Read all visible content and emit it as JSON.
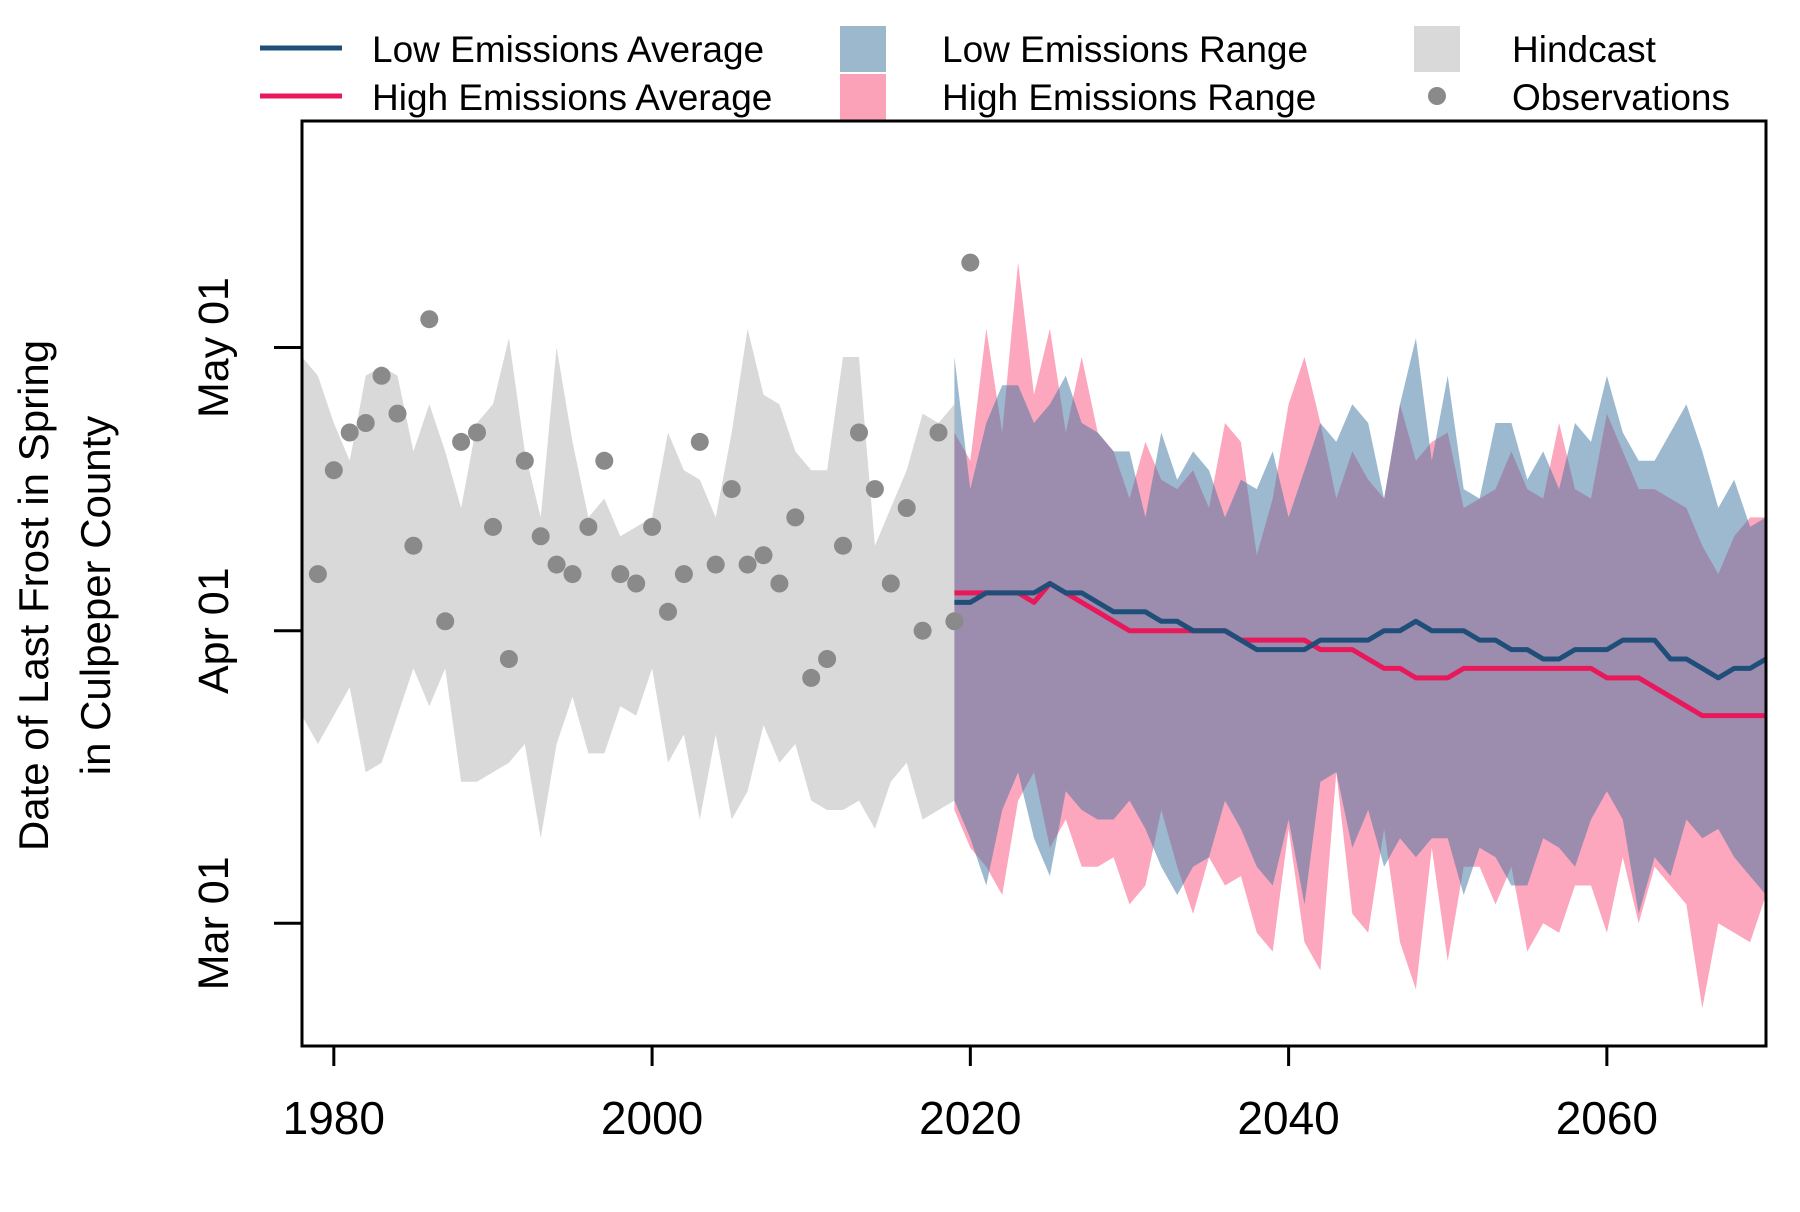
{
  "chart_data": {
    "type": "line",
    "title": "",
    "xlabel": "",
    "ylabel_lines": [
      "Date of Last Frost in Spring",
      "in Culpeper County"
    ],
    "x_ticks": [
      1980,
      2000,
      2020,
      2040,
      2060
    ],
    "y_ticks": [
      {
        "label": "Mar 01",
        "date": "Mar 01"
      },
      {
        "label": "Apr 01",
        "date": "Apr 01"
      },
      {
        "label": "May 01",
        "date": "May 01"
      }
    ],
    "xlim": [
      1978,
      2070
    ],
    "ylim": [
      "Feb 16",
      "May 25"
    ],
    "grid": false,
    "legend": {
      "placement": "top",
      "items": [
        {
          "label": "Low Emissions Average",
          "kind": "line",
          "color": "#1f4e79"
        },
        {
          "label": "High Emissions Average",
          "kind": "line",
          "color": "#e8195a"
        },
        {
          "label": "Low Emissions Range",
          "kind": "box",
          "color": "#9bb8cd"
        },
        {
          "label": "High Emissions Range",
          "kind": "box",
          "color": "#fba2b8"
        },
        {
          "label": "Hindcast",
          "kind": "box",
          "color": "#d9d9d9"
        },
        {
          "label": "Observations",
          "kind": "dot",
          "color": "#8a8a8a"
        }
      ]
    },
    "colors": {
      "hindcast": "#d9d9d9",
      "low_range": "rgba(60,115,160,0.5)",
      "high_range": "rgba(250,80,125,0.5)",
      "low_avg": "#1f4e79",
      "high_avg": "#e8195a",
      "observations": "#8a8a8a"
    },
    "hindcast": {
      "x": [
        1978,
        1979,
        1980,
        1981,
        1982,
        1983,
        1984,
        1985,
        1986,
        1987,
        1988,
        1989,
        1990,
        1991,
        1992,
        1993,
        1994,
        1995,
        1996,
        1997,
        1998,
        1999,
        2000,
        2001,
        2002,
        2003,
        2004,
        2005,
        2006,
        2007,
        2008,
        2009,
        2010,
        2011,
        2012,
        2013,
        2014,
        2015,
        2016,
        2017,
        2018,
        2019
      ],
      "upper": [
        "Apr 30",
        "Apr 28",
        "Apr 23",
        "Apr 19",
        "Apr 28",
        "Apr 29",
        "Apr 28",
        "Apr 20",
        "Apr 25",
        "Apr 20",
        "Apr 14",
        "Apr 23",
        "Apr 25",
        "May 02",
        "Apr 20",
        "Apr 13",
        "May 01",
        "Apr 21",
        "Apr 13",
        "Apr 15",
        "Apr 11",
        "Apr 12",
        "Apr 13",
        "Apr 22",
        "Apr 18",
        "Apr 17",
        "Apr 13",
        "Apr 22",
        "May 03",
        "Apr 26",
        "Apr 25",
        "Apr 20",
        "Apr 18",
        "Apr 18",
        "Apr 30",
        "Apr 30",
        "Apr 10",
        "Apr 14",
        "Apr 18",
        "Apr 24",
        "Apr 23",
        "Apr 25"
      ],
      "lower": [
        "Mar 23",
        "Mar 20",
        "Mar 23",
        "Mar 26",
        "Mar 17",
        "Mar 18",
        "Mar 23",
        "Mar 28",
        "Mar 24",
        "Mar 28",
        "Mar 16",
        "Mar 16",
        "Mar 17",
        "Mar 18",
        "Mar 20",
        "Mar 10",
        "Mar 20",
        "Mar 25",
        "Mar 19",
        "Mar 19",
        "Mar 24",
        "Mar 23",
        "Mar 28",
        "Mar 18",
        "Mar 21",
        "Mar 12",
        "Mar 21",
        "Mar 12",
        "Mar 15",
        "Mar 22",
        "Mar 18",
        "Mar 20",
        "Mar 14",
        "Mar 13",
        "Mar 13",
        "Mar 14",
        "Mar 11",
        "Mar 16",
        "Mar 18",
        "Mar 12",
        "Mar 13",
        "Mar 14"
      ]
    },
    "low_range": {
      "x": [
        2019,
        2020,
        2021,
        2022,
        2023,
        2024,
        2025,
        2026,
        2027,
        2028,
        2029,
        2030,
        2031,
        2032,
        2033,
        2034,
        2035,
        2036,
        2037,
        2038,
        2039,
        2040,
        2041,
        2042,
        2043,
        2044,
        2045,
        2046,
        2047,
        2048,
        2049,
        2050,
        2051,
        2052,
        2053,
        2054,
        2055,
        2056,
        2057,
        2058,
        2059,
        2060,
        2061,
        2062,
        2063,
        2064,
        2065,
        2066,
        2067,
        2068,
        2069,
        2070
      ],
      "upper": [
        "Apr 30",
        "Apr 16",
        "Apr 23",
        "Apr 27",
        "Apr 27",
        "Apr 23",
        "Apr 25",
        "Apr 28",
        "Apr 23",
        "Apr 22",
        "Apr 20",
        "Apr 20",
        "Apr 13",
        "Apr 22",
        "Apr 17",
        "Apr 20",
        "Apr 18",
        "Apr 13",
        "Apr 17",
        "Apr 16",
        "Apr 20",
        "Apr 13",
        "Apr 18",
        "Apr 23",
        "Apr 21",
        "Apr 25",
        "Apr 23",
        "Apr 15",
        "Apr 25",
        "May 02",
        "Apr 19",
        "Apr 28",
        "Apr 16",
        "Apr 15",
        "Apr 23",
        "Apr 23",
        "Apr 17",
        "Apr 20",
        "Apr 16",
        "Apr 23",
        "Apr 21",
        "Apr 28",
        "Apr 22",
        "Apr 19",
        "Apr 19",
        "Apr 22",
        "Apr 25",
        "Apr 20",
        "Apr 14",
        "Apr 17",
        "Apr 12",
        "Apr 13"
      ],
      "lower": [
        "Mar 14",
        "Mar 10",
        "Mar 05",
        "Mar 13",
        "Mar 17",
        "Mar 10",
        "Mar 06",
        "Mar 15",
        "Mar 13",
        "Mar 12",
        "Mar 12",
        "Mar 14",
        "Mar 11",
        "Mar 07",
        "Mar 04",
        "Mar 07",
        "Mar 08",
        "Mar 14",
        "Mar 11",
        "Mar 07",
        "Mar 05",
        "Mar 12",
        "Mar 03",
        "Mar 16",
        "Mar 17",
        "Mar 09",
        "Mar 13",
        "Mar 07",
        "Mar 10",
        "Mar 08",
        "Mar 10",
        "Mar 10",
        "Mar 04",
        "Mar 09",
        "Mar 08",
        "Mar 05",
        "Mar 05",
        "Mar 10",
        "Mar 09",
        "Mar 07",
        "Mar 12",
        "Mar 15",
        "Mar 12",
        "Mar 02",
        "Mar 08",
        "Mar 06",
        "Mar 12",
        "Mar 10",
        "Mar 11",
        "Mar 08",
        "Mar 06",
        "Mar 04"
      ]
    },
    "high_range": {
      "x": [
        2019,
        2020,
        2021,
        2022,
        2023,
        2024,
        2025,
        2026,
        2027,
        2028,
        2029,
        2030,
        2031,
        2032,
        2033,
        2034,
        2035,
        2036,
        2037,
        2038,
        2039,
        2040,
        2041,
        2042,
        2043,
        2044,
        2045,
        2046,
        2047,
        2048,
        2049,
        2050,
        2051,
        2052,
        2053,
        2054,
        2055,
        2056,
        2057,
        2058,
        2059,
        2060,
        2061,
        2062,
        2063,
        2064,
        2065,
        2066,
        2067,
        2068,
        2069,
        2070
      ],
      "upper": [
        "Apr 22",
        "Apr 19",
        "May 03",
        "Apr 22",
        "May 10",
        "Apr 26",
        "May 03",
        "Apr 22",
        "Apr 30",
        "Apr 22",
        "Apr 20",
        "Apr 15",
        "Apr 21",
        "Apr 17",
        "Apr 16",
        "Apr 18",
        "Apr 14",
        "Apr 23",
        "Apr 21",
        "Apr 09",
        "Apr 15",
        "Apr 25",
        "Apr 30",
        "Apr 23",
        "Apr 15",
        "Apr 20",
        "Apr 17",
        "Apr 15",
        "Apr 25",
        "Apr 19",
        "Apr 21",
        "Apr 22",
        "Apr 14",
        "Apr 15",
        "Apr 16",
        "Apr 20",
        "Apr 16",
        "Apr 15",
        "Apr 23",
        "Apr 16",
        "Apr 15",
        "Apr 24",
        "Apr 20",
        "Apr 16",
        "Apr 16",
        "Apr 15",
        "Apr 14",
        "Apr 10",
        "Apr 07",
        "Apr 11",
        "Apr 13",
        "Apr 13"
      ],
      "lower": [
        "Mar 13",
        "Mar 09",
        "Mar 07",
        "Mar 04",
        "Mar 14",
        "Mar 17",
        "Mar 09",
        "Mar 12",
        "Mar 07",
        "Mar 07",
        "Mar 08",
        "Mar 03",
        "Mar 05",
        "Mar 13",
        "Mar 07",
        "Mar 02",
        "Mar 08",
        "Mar 05",
        "Mar 06",
        "Feb 28",
        "Feb 26",
        "Mar 11",
        "Feb 27",
        "Feb 24",
        "Mar 17",
        "Mar 02",
        "Feb 28",
        "Mar 11",
        "Feb 27",
        "Feb 22",
        "Mar 09",
        "Feb 25",
        "Mar 07",
        "Mar 07",
        "Mar 03",
        "Mar 07",
        "Feb 26",
        "Mar 01",
        "Feb 28",
        "Mar 05",
        "Mar 05",
        "Feb 28",
        "Mar 08",
        "Mar 01",
        "Mar 07",
        "Mar 05",
        "Mar 03",
        "Feb 20",
        "Mar 01",
        "Feb 28",
        "Feb 27",
        "Mar 04"
      ]
    },
    "low_avg": {
      "x": [
        2019,
        2020,
        2021,
        2022,
        2023,
        2024,
        2025,
        2026,
        2027,
        2028,
        2029,
        2030,
        2031,
        2032,
        2033,
        2034,
        2035,
        2036,
        2037,
        2038,
        2039,
        2040,
        2041,
        2042,
        2043,
        2044,
        2045,
        2046,
        2047,
        2048,
        2049,
        2050,
        2051,
        2052,
        2053,
        2054,
        2055,
        2056,
        2057,
        2058,
        2059,
        2060,
        2061,
        2062,
        2063,
        2064,
        2065,
        2066,
        2067,
        2068,
        2069,
        2070
      ],
      "y": [
        "Apr 04",
        "Apr 04",
        "Apr 05",
        "Apr 05",
        "Apr 05",
        "Apr 05",
        "Apr 06",
        "Apr 05",
        "Apr 05",
        "Apr 04",
        "Apr 03",
        "Apr 03",
        "Apr 03",
        "Apr 02",
        "Apr 02",
        "Apr 01",
        "Apr 01",
        "Apr 01",
        "Mar 31",
        "Mar 30",
        "Mar 30",
        "Mar 30",
        "Mar 30",
        "Mar 31",
        "Mar 31",
        "Mar 31",
        "Mar 31",
        "Apr 01",
        "Apr 01",
        "Apr 02",
        "Apr 01",
        "Apr 01",
        "Apr 01",
        "Mar 31",
        "Mar 31",
        "Mar 30",
        "Mar 30",
        "Mar 29",
        "Mar 29",
        "Mar 30",
        "Mar 30",
        "Mar 30",
        "Mar 31",
        "Mar 31",
        "Mar 31",
        "Mar 29",
        "Mar 29",
        "Mar 28",
        "Mar 27",
        "Mar 28",
        "Mar 28",
        "Mar 29"
      ]
    },
    "high_avg": {
      "x": [
        2019,
        2020,
        2021,
        2022,
        2023,
        2024,
        2025,
        2026,
        2027,
        2028,
        2029,
        2030,
        2031,
        2032,
        2033,
        2034,
        2035,
        2036,
        2037,
        2038,
        2039,
        2040,
        2041,
        2042,
        2043,
        2044,
        2045,
        2046,
        2047,
        2048,
        2049,
        2050,
        2051,
        2052,
        2053,
        2054,
        2055,
        2056,
        2057,
        2058,
        2059,
        2060,
        2061,
        2062,
        2063,
        2064,
        2065,
        2066,
        2067,
        2068,
        2069,
        2070
      ],
      "y": [
        "Apr 05",
        "Apr 05",
        "Apr 05",
        "Apr 05",
        "Apr 05",
        "Apr 04",
        "Apr 06",
        "Apr 05",
        "Apr 04",
        "Apr 03",
        "Apr 02",
        "Apr 01",
        "Apr 01",
        "Apr 01",
        "Apr 01",
        "Apr 01",
        "Apr 01",
        "Apr 01",
        "Mar 31",
        "Mar 31",
        "Mar 31",
        "Mar 31",
        "Mar 31",
        "Mar 30",
        "Mar 30",
        "Mar 30",
        "Mar 29",
        "Mar 28",
        "Mar 28",
        "Mar 27",
        "Mar 27",
        "Mar 27",
        "Mar 28",
        "Mar 28",
        "Mar 28",
        "Mar 28",
        "Mar 28",
        "Mar 28",
        "Mar 28",
        "Mar 28",
        "Mar 28",
        "Mar 27",
        "Mar 27",
        "Mar 27",
        "Mar 26",
        "Mar 25",
        "Mar 24",
        "Mar 23",
        "Mar 23",
        "Mar 23",
        "Mar 23",
        "Mar 23"
      ]
    },
    "observations": {
      "x": [
        1979,
        1980,
        1981,
        1982,
        1983,
        1984,
        1985,
        1986,
        1987,
        1988,
        1989,
        1990,
        1991,
        1992,
        1993,
        1994,
        1995,
        1996,
        1997,
        1998,
        1999,
        2000,
        2001,
        2002,
        2003,
        2004,
        2005,
        2006,
        2007,
        2008,
        2009,
        2010,
        2011,
        2012,
        2013,
        2014,
        2015,
        2016,
        2017,
        2018,
        2019,
        2020
      ],
      "y": [
        "Apr 07",
        "Apr 18",
        "Apr 22",
        "Apr 23",
        "Apr 28",
        "Apr 24",
        "Apr 10",
        "May 04",
        "Apr 02",
        "Apr 21",
        "Apr 22",
        "Apr 12",
        "Mar 29",
        "Apr 19",
        "Apr 11",
        "Apr 08",
        "Apr 07",
        "Apr 12",
        "Apr 19",
        "Apr 07",
        "Apr 06",
        "Apr 12",
        "Apr 03",
        "Apr 07",
        "Apr 21",
        "Apr 08",
        "Apr 16",
        "Apr 08",
        "Apr 09",
        "Apr 06",
        "Apr 13",
        "Mar 27",
        "Mar 29",
        "Apr 10",
        "Apr 22",
        "Apr 16",
        "Apr 06",
        "Apr 14",
        "Apr 01",
        "Apr 22",
        "Apr 02",
        "May 10"
      ]
    }
  }
}
